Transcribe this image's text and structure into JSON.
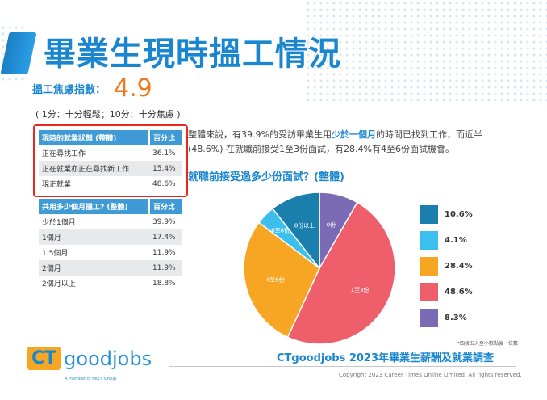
{
  "header": {
    "title": "畢業生現時搵工情況"
  },
  "anxiety": {
    "label": "搵工焦慮指數：",
    "value": "4.9",
    "note": "( 1分：十分輕鬆；10分：十分焦慮 )"
  },
  "status_table": {
    "headers": [
      "現時的就業狀態 (整體)",
      "百分比"
    ],
    "rows": [
      {
        "label": "正在尋找工作",
        "value": "36.1%"
      },
      {
        "label": "正在就業亦正在尋找新工作",
        "value": "15.4%"
      },
      {
        "label": "現正就業",
        "value": "48.6%"
      }
    ]
  },
  "duration_table": {
    "headers": [
      "共用多少個月搵工? (整體)",
      "百分比"
    ],
    "rows": [
      {
        "label": "少於1個月",
        "value": "39.9%"
      },
      {
        "label": "1個月",
        "value": "17.4%"
      },
      {
        "label": "1.5個月",
        "value": "11.9%"
      },
      {
        "label": "2個月",
        "value": "11.9%"
      },
      {
        "label": "2個月以上",
        "value": "18.8%"
      }
    ]
  },
  "paragraph": {
    "p1": "整體來說，有39.9%的受訪畢業生用",
    "highlight": "少於一個月",
    "p2": "的時間已找到工作，而近半 (48.6%) 在就職前接受1至3份面試，有28.4%有4至6份面試機會。"
  },
  "colors": {
    "accent": "#1a86cf",
    "orange": "#f07a1a",
    "red_border": "#e8281e"
  },
  "chart_data": {
    "type": "pie",
    "title": "就職前接受過多少份面試？(整體)",
    "slices": [
      {
        "label": "0份",
        "value": 8.3,
        "color": "#7b6bb5"
      },
      {
        "label": "1至3份",
        "value": 48.6,
        "color": "#ee5f6b"
      },
      {
        "label": "4至6份",
        "value": 28.4,
        "color": "#f6a623"
      },
      {
        "label": "6至8份",
        "value": 4.1,
        "color": "#3dbfee"
      },
      {
        "label": "8份以上",
        "value": 10.6,
        "color": "#1b7fae"
      }
    ],
    "legend": [
      {
        "text": "10.6%",
        "color": "#1b7fae"
      },
      {
        "text": "4.1%",
        "color": "#3dbfee"
      },
      {
        "text": "28.4%",
        "color": "#f6a623"
      },
      {
        "text": "48.6%",
        "color": "#ee5f6b"
      },
      {
        "text": "8.3%",
        "color": "#7b6bb5"
      }
    ],
    "legend_position": "right",
    "footnote": "*四捨五入至小數點後一位數"
  },
  "footer": {
    "logo_ct": "CT",
    "logo_goodjobs": "goodjobs",
    "logo_sub": "A member of HKET Group",
    "survey_title": "CTgoodjobs 2023年畢業生薪酬及就業調查",
    "copyright": "Copyright 2023 Career Times Online Limited. All rights reserved."
  }
}
